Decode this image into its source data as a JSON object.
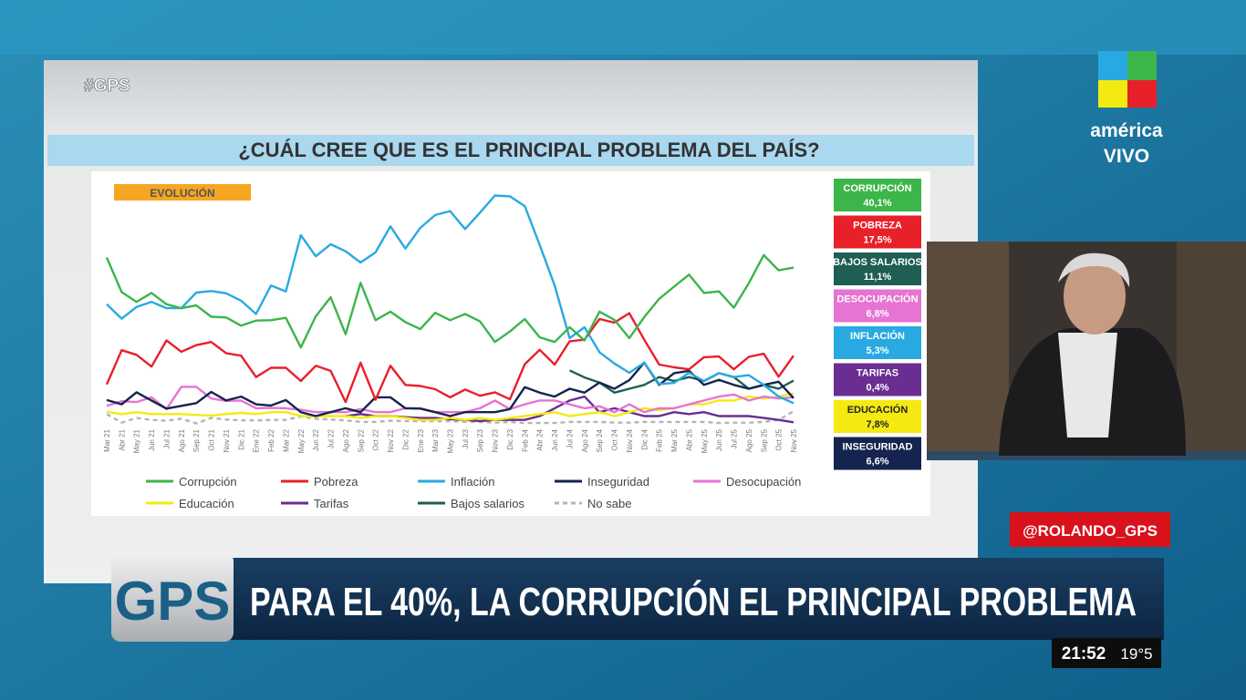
{
  "overlay": {
    "hashtag": "#GPS",
    "logo_line1": "américa",
    "logo_line2": "VIVO",
    "handle": "@ROLANDO_GPS",
    "gps_logo": "GPS",
    "banner": "PARA EL 40%, LA CORRUPCIÓN EL PRINCIPAL PROBLEMA",
    "time": "21:52",
    "temperature": "19°5"
  },
  "summary": [
    {
      "label": "CORRUPCIÓN",
      "value": "40,1%",
      "color": "#3cb54a"
    },
    {
      "label": "POBREZA",
      "value": "17,5%",
      "color": "#e8202a"
    },
    {
      "label": "BAJOS SALARIOS",
      "value": "11,1%",
      "color": "#1e5e55"
    },
    {
      "label": "DESOCUPACIÓN",
      "value": "6,8%",
      "color": "#e674d2"
    },
    {
      "label": "INFLACIÓN",
      "value": "5,3%",
      "color": "#29a9e1"
    },
    {
      "label": "TARIFAS",
      "value": "0,4%",
      "color": "#6a2d91"
    },
    {
      "label": "EDUCACIÓN",
      "value": "7,8%",
      "color": "#f4ea12"
    },
    {
      "label": "INSEGURIDAD",
      "value": "6,6%",
      "color": "#14244f"
    }
  ],
  "chart_data": {
    "type": "line",
    "title": "¿CUÁL CREE QUE ES EL PRINCIPAL PROBLEMA DEL PAÍS?",
    "annotation": "EVOLUCIÓN",
    "categories": [
      "Mar 21",
      "Abr 21",
      "May 21",
      "Jun 21",
      "Jul 21",
      "Ago 21",
      "Sep 21",
      "Oct 21",
      "Nov 21",
      "Dic 21",
      "Ene 22",
      "Feb 22",
      "Mar 22",
      "May 22",
      "Jun 22",
      "Jul 22",
      "Ago 22",
      "Sep 22",
      "Oct 22",
      "Nov 22",
      "Dic 22",
      "Ene 23",
      "Mar 23",
      "May 23",
      "Jul 23",
      "Sep 23",
      "Nov 23",
      "Dic 23",
      "Feb 24",
      "Abr 24",
      "Jun 24",
      "Jul 24",
      "Ago 24",
      "Sep 24",
      "Oct 24",
      "Nov 24",
      "Dic 24",
      "Feb 25",
      "Mar 25",
      "Abr 25",
      "May 25",
      "Jun 25",
      "Jul 25",
      "Ago 25",
      "Sep 25",
      "Oct 25",
      "Nov 25"
    ],
    "ylim": [
      0,
      62
    ],
    "series": [
      {
        "name": "Corrupción",
        "color": "#3cb54a",
        "values": [
          42.7,
          33.8,
          31.3,
          33.6,
          30.7,
          29.7,
          30.4,
          27.5,
          27.3,
          25.2,
          26.5,
          26.6,
          27.2,
          19.6,
          27.6,
          32.5,
          23.0,
          36.2,
          26.6,
          28.8,
          26.1,
          24.3,
          28.5,
          26.6,
          28.2,
          26.3,
          21.0,
          23.7,
          26.9,
          22.2,
          21.0,
          24.8,
          21.4,
          28.8,
          26.7,
          22.0,
          27.4,
          32.1,
          35.2,
          38.3,
          33.6,
          34.0,
          29.8,
          36.1,
          43.3,
          39.4,
          40.1
        ]
      },
      {
        "name": "Pobreza",
        "color": "#e8202a",
        "values": [
          10.1,
          18.9,
          17.7,
          14.7,
          21.4,
          18.5,
          20.2,
          21.0,
          18.1,
          17.5,
          12.0,
          14.4,
          14.4,
          11.0,
          14.9,
          13.6,
          5.6,
          15.7,
          6.2,
          14.9,
          10.0,
          9.7,
          8.9,
          6.8,
          8.8,
          7.2,
          8.1,
          6.3,
          15.3,
          19.0,
          15.2,
          21.2,
          21.6,
          26.9,
          26.0,
          28.4,
          21.6,
          15.2,
          14.5,
          14.0,
          17.1,
          17.3,
          14.0,
          17.2,
          18.0,
          12.1,
          17.5
        ]
      },
      {
        "name": "Inflación",
        "color": "#29a9e1",
        "values": [
          30.7,
          27.0,
          30.0,
          31.3,
          29.7,
          29.7,
          33.7,
          34.1,
          33.5,
          31.6,
          28.2,
          35.5,
          34.0,
          48.4,
          43.0,
          46.1,
          44.3,
          41.4,
          44.0,
          50.7,
          45.0,
          50.3,
          53.6,
          54.6,
          50.0,
          54.2,
          58.6,
          58.4,
          55.9,
          45.9,
          35.5,
          22.0,
          24.8,
          18.4,
          15.5,
          13.1,
          15.7,
          10.2,
          10.5,
          13.1,
          11.0,
          13.0,
          12.0,
          12.5,
          10.0,
          7.0,
          5.3
        ]
      },
      {
        "name": "Inseguridad",
        "color": "#14244f",
        "values": [
          6.1,
          5.0,
          8.1,
          6.0,
          3.9,
          4.6,
          5.3,
          8.2,
          6.0,
          7.0,
          5.0,
          4.7,
          6.1,
          3.0,
          2.0,
          3.0,
          4.0,
          3.0,
          6.8,
          6.8,
          4.0,
          3.9,
          3.0,
          2.0,
          3.0,
          3.0,
          3.0,
          3.8,
          9.4,
          8.0,
          7.0,
          9.0,
          8.0,
          10.6,
          9.0,
          11.2,
          15.7,
          10.0,
          13.0,
          13.6,
          10.0,
          11.3,
          10.0,
          9.0,
          10.0,
          10.8,
          6.6
        ]
      },
      {
        "name": "Desocupación",
        "color": "#e674d2",
        "values": [
          4.6,
          5.8,
          5.6,
          6.8,
          3.8,
          9.5,
          9.5,
          6.5,
          5.9,
          6.0,
          4.0,
          4.1,
          4.0,
          3.6,
          3.0,
          3.0,
          3.0,
          3.8,
          3.0,
          3.0,
          4.0,
          4.0,
          3.0,
          3.0,
          3.0,
          4.0,
          6.0,
          3.8,
          5.0,
          6.0,
          6.0,
          5.0,
          4.0,
          4.5,
          3.0,
          5.0,
          3.0,
          4.0,
          4.0,
          5.0,
          6.0,
          7.0,
          7.5,
          6.0,
          7.0,
          6.5,
          6.8
        ]
      },
      {
        "name": "Educación",
        "color": "#f4ea12",
        "values": [
          3.1,
          2.5,
          3.0,
          2.5,
          2.5,
          2.5,
          2.3,
          2.1,
          2.5,
          2.8,
          2.5,
          3.0,
          3.0,
          2.0,
          2.0,
          2.0,
          2.0,
          1.5,
          2.0,
          2.0,
          1.5,
          1.0,
          1.0,
          1.5,
          1.0,
          1.5,
          1.0,
          1.5,
          2.0,
          2.5,
          3.0,
          2.0,
          2.5,
          3.0,
          2.0,
          3.0,
          4.0,
          3.5,
          4.0,
          5.0,
          5.0,
          6.0,
          6.0,
          7.0,
          6.5,
          7.0,
          7.8
        ]
      },
      {
        "name": "Tarifas",
        "color": "#6a2d91",
        "values": [
          null,
          null,
          null,
          null,
          null,
          null,
          null,
          null,
          null,
          null,
          null,
          null,
          null,
          null,
          null,
          null,
          2.0,
          2.5,
          2.0,
          2.0,
          1.7,
          1.5,
          1.5,
          1.2,
          1.0,
          0.7,
          1.0,
          1.0,
          1.0,
          2.0,
          4.0,
          6.0,
          7.0,
          3.0,
          4.0,
          3.0,
          2.0,
          2.0,
          3.0,
          2.5,
          3.0,
          2.0,
          2.0,
          2.0,
          1.5,
          1.0,
          0.4
        ]
      },
      {
        "name": "Bajos salarios",
        "color": "#1e5e55",
        "values": [
          null,
          null,
          null,
          null,
          null,
          null,
          null,
          null,
          null,
          null,
          null,
          null,
          null,
          null,
          null,
          null,
          null,
          null,
          null,
          null,
          null,
          null,
          null,
          null,
          null,
          null,
          null,
          null,
          null,
          null,
          null,
          13.7,
          11.9,
          10.6,
          8.0,
          9.0,
          10.0,
          12.0,
          11.0,
          12.0,
          11.0,
          13.0,
          12.0,
          9.0,
          10.0,
          9.0,
          11.1
        ]
      },
      {
        "name": "No sabe",
        "color": "#b5b5b5",
        "dashed": true,
        "values": [
          2.5,
          0.3,
          1.5,
          1.0,
          0.8,
          1.3,
          0.1,
          1.5,
          1.1,
          0.9,
          0.9,
          1.0,
          1.0,
          1.9,
          1.3,
          1.1,
          0.9,
          0.5,
          0.5,
          0.8,
          0.7,
          0.7,
          0.7,
          0.7,
          0.5,
          0.5,
          0.3,
          0.5,
          0.2,
          0.2,
          0.2,
          0.5,
          0.5,
          0.5,
          0.3,
          0.3,
          0.5,
          0.5,
          0.5,
          0.5,
          0.5,
          0.2,
          0.3,
          0.3,
          0.5,
          1.0,
          3.2
        ]
      }
    ]
  }
}
